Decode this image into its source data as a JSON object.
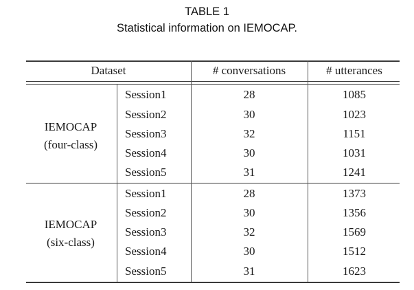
{
  "caption": {
    "label": "TABLE 1",
    "text": "Statistical information on IEMOCAP."
  },
  "table": {
    "headers": [
      "Dataset",
      "# conversations",
      "# utterances"
    ],
    "groups": [
      {
        "name": "IEMOCAP",
        "subtitle": "(four-class)",
        "rows": [
          {
            "session": "Session1",
            "conversations": "28",
            "utterances": "1085"
          },
          {
            "session": "Session2",
            "conversations": "30",
            "utterances": "1023"
          },
          {
            "session": "Session3",
            "conversations": "32",
            "utterances": "1151"
          },
          {
            "session": "Session4",
            "conversations": "30",
            "utterances": "1031"
          },
          {
            "session": "Session5",
            "conversations": "31",
            "utterances": "1241"
          }
        ]
      },
      {
        "name": "IEMOCAP",
        "subtitle": "(six-class)",
        "rows": [
          {
            "session": "Session1",
            "conversations": "28",
            "utterances": "1373"
          },
          {
            "session": "Session2",
            "conversations": "30",
            "utterances": "1356"
          },
          {
            "session": "Session3",
            "conversations": "32",
            "utterances": "1569"
          },
          {
            "session": "Session4",
            "conversations": "30",
            "utterances": "1512"
          },
          {
            "session": "Session5",
            "conversations": "31",
            "utterances": "1623"
          }
        ]
      }
    ]
  }
}
